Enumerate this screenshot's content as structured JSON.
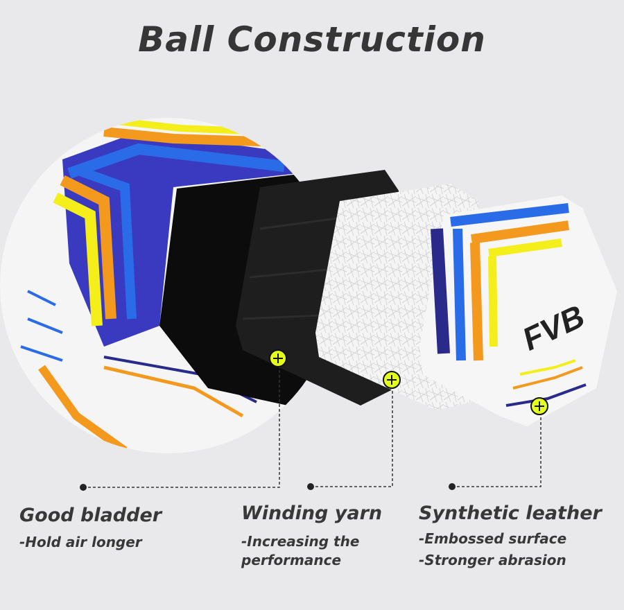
{
  "title": "Ball Construction",
  "brand_logo": "FVB",
  "colors": {
    "background": "#e9e9eb",
    "text": "#363636",
    "marker": "#e4ff1a",
    "blue": "#2a5fe0",
    "orange": "#f39a1e",
    "yellow": "#f4ee1a",
    "navy": "#2a2a8a"
  },
  "layers": [
    {
      "icon": "plus-marker-icon",
      "title": "Good bladder",
      "lines": [
        "-Hold air longer"
      ]
    },
    {
      "icon": "plus-marker-icon",
      "title": "Winding yarn",
      "lines": [
        "-Increasing the",
        "performance"
      ]
    },
    {
      "icon": "plus-marker-icon",
      "title": "Synthetic leather",
      "lines": [
        "-Embossed surface",
        "-Stronger abrasion"
      ]
    }
  ]
}
